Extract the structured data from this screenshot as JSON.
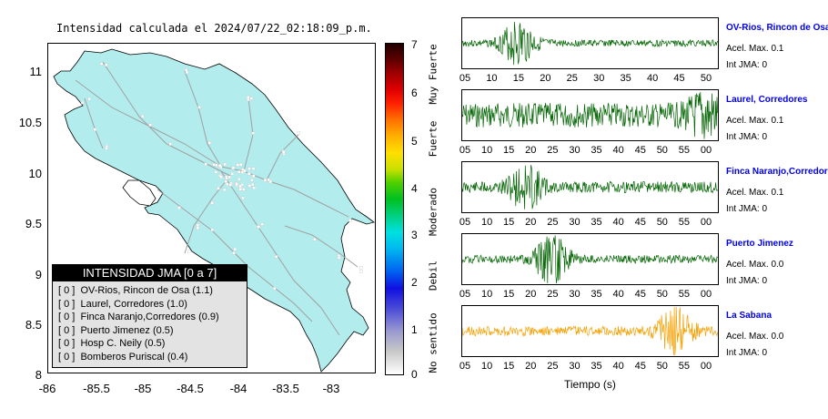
{
  "map": {
    "title": "Intensidad calculada el 2024/07/22_02:18:09_p.m.",
    "y_ticks": [
      "11",
      "10.5",
      "10",
      "9.5",
      "9",
      "8.5",
      "8"
    ],
    "x_ticks": [
      "-86",
      "-85.5",
      "-85",
      "-84.5",
      "-84",
      "-83.5",
      "-83"
    ],
    "land_color": "#b2eced",
    "road_color": "#a0a0a0"
  },
  "legend": {
    "title": "INTENSIDAD JMA [0 a 7]",
    "items": [
      {
        "int": "[ 0 ]",
        "label": "OV-Rios, Rincon de Osa (1.1)"
      },
      {
        "int": "[ 0 ]",
        "label": "Laurel, Corredores (1.0)"
      },
      {
        "int": "[ 0 ]",
        "label": "Finca Naranjo,Corredores (0.9)"
      },
      {
        "int": "[ 0 ]",
        "label": "Puerto Jimenez (0.5)"
      },
      {
        "int": "[ 0 ]",
        "label": "Hosp C. Neily (0.5)"
      },
      {
        "int": "[ 0 ]",
        "label": "Bomberos Puriscal (0.4)"
      }
    ]
  },
  "colorbar": {
    "numbers": [
      "7",
      "6",
      "5",
      "4",
      "3",
      "2",
      "1",
      "0"
    ],
    "words": [
      "Muy Fuerte",
      "Fuerte",
      "Moderado",
      "Debil",
      "No sentido"
    ]
  },
  "traces": [
    {
      "name": "OV-Rios, Rincon de Osa",
      "acel": "Acel. Max. 0.1",
      "int": "Int JMA: 0",
      "ticks": [
        "05",
        "10",
        "15",
        "20",
        "25",
        "30",
        "35",
        "40",
        "45",
        "50"
      ],
      "color": "#006400",
      "amp": 0.15,
      "burst": 0.22,
      "burst_amp": 1.0,
      "seed": 3
    },
    {
      "name": "Laurel, Corredores",
      "acel": "Acel. Max. 0.1",
      "int": "Int JMA: 0",
      "ticks": [
        "05",
        "10",
        "15",
        "20",
        "25",
        "30",
        "35",
        "40",
        "45",
        "50",
        "55",
        "00"
      ],
      "color": "#006400",
      "amp": 0.55,
      "burst": 0.95,
      "burst_amp": 0.8,
      "seed": 7
    },
    {
      "name": "Finca Naranjo,Corredores",
      "acel": "Acel. Max. 0.1",
      "int": "Int JMA: 0",
      "ticks": [
        "05",
        "10",
        "15",
        "20",
        "25",
        "30",
        "35",
        "40",
        "45",
        "50",
        "55",
        "00"
      ],
      "color": "#006400",
      "amp": 0.25,
      "burst": 0.25,
      "burst_amp": 0.9,
      "seed": 11
    },
    {
      "name": "Puerto Jimenez",
      "acel": "Acel. Max. 0.0",
      "int": "Int JMA: 0",
      "ticks": [
        "05",
        "10",
        "15",
        "20",
        "25",
        "30",
        "35",
        "40",
        "45",
        "50",
        "55",
        "00"
      ],
      "color": "#006400",
      "amp": 0.18,
      "burst": 0.35,
      "burst_amp": 1.0,
      "seed": 19
    },
    {
      "name": "La Sabana",
      "acel": "Acel. Max. 0.0",
      "int": "Int JMA: 0",
      "ticks": [
        "05",
        "10",
        "15",
        "20",
        "25",
        "30",
        "35",
        "40",
        "45",
        "50",
        "55",
        "00"
      ],
      "color": "#f5a000",
      "amp": 0.22,
      "burst": 0.83,
      "burst_amp": 1.0,
      "seed": 23
    }
  ],
  "x_axis_title": "Tiempo (s)"
}
